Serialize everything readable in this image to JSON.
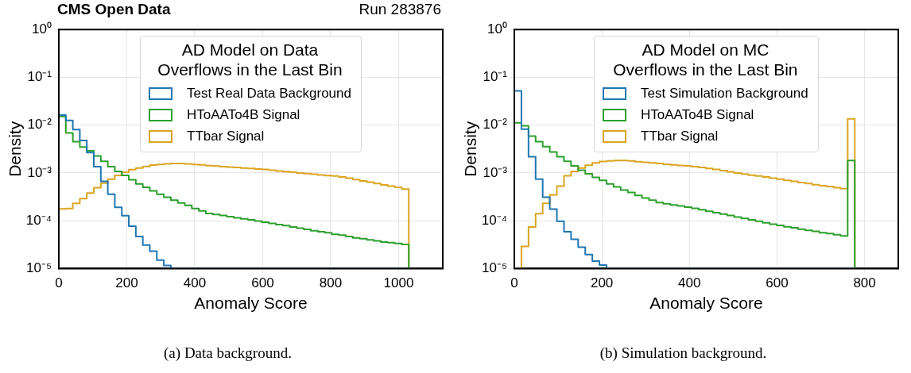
{
  "chart_data": [
    {
      "type": "histogram",
      "title": "CMS Open Data",
      "subtitle": "Run 283876",
      "xlabel": "Anomaly Score",
      "ylabel": "Density",
      "legend_title": "AD Model on Data\nOverflows in the Last Bin",
      "legend": "top",
      "grid": true,
      "log": true,
      "bins": [
        0,
        20.6,
        41.2,
        61.8,
        82.4,
        103,
        123.6,
        144.2,
        164.8,
        185.4,
        206,
        226.6,
        247.2,
        267.8,
        288.4,
        309,
        329.6,
        350.2,
        370.8,
        391.4,
        412,
        432.6,
        453.2,
        473.8,
        494.4,
        515,
        535.6,
        556.2,
        576.8,
        597.4,
        618,
        638.6,
        659.2,
        679.8,
        700.4,
        721,
        741.6,
        762.2,
        782.8,
        803.4,
        824,
        844.6,
        865.2,
        885.8,
        906.4,
        927,
        947.6,
        968.2,
        988.8,
        1009.4,
        1030
      ],
      "series": [
        {
          "name": "Test Real Data Background",
          "color": "#1f77b4",
          "values": [
            0.0163,
            0.0126,
            0.0081,
            0.0048,
            0.00266,
            0.00135,
            0.00067,
            0.00036,
            0.00019,
            0.000128,
            7.7e-05,
            4.7e-05,
            3.1e-05,
            2.3e-05,
            1.5e-05,
            1.16e-05,
            null,
            null,
            null,
            null,
            null,
            null,
            null,
            null,
            null,
            null,
            null,
            null,
            null,
            null,
            null,
            null,
            null,
            null,
            null,
            null,
            null,
            null,
            null,
            null,
            null,
            null,
            null,
            null,
            null,
            null,
            null,
            null,
            null,
            null
          ]
        },
        {
          "name": "HToAATo4B Signal",
          "color": "#2ca02c",
          "values": [
            0.0152,
            0.0069,
            0.0045,
            0.0035,
            0.0029,
            0.00226,
            0.00175,
            0.00135,
            0.00108,
            0.00089,
            0.00072,
            0.00059,
            0.0005,
            0.00042,
            0.00036,
            0.00031,
            0.00027,
            0.000236,
            0.00021,
            0.000181,
            0.00016,
            0.000142,
            0.000135,
            0.000129,
            0.000122,
            0.000115,
            0.00011,
            0.000105,
            9.9e-05,
            9.3e-05,
            8.8e-05,
            8.3e-05,
            7.9e-05,
            7.4e-05,
            7e-05,
            6.6e-05,
            6.2e-05,
            5.9e-05,
            5.6e-05,
            5.2e-05,
            5e-05,
            4.7e-05,
            4.4e-05,
            4.2e-05,
            4e-05,
            3.8e-05,
            3.6e-05,
            3.5e-05,
            3.35e-05,
            3.2e-05
          ]
        },
        {
          "name": "TTbar Signal",
          "color": "#daa520",
          "values": [
            0.000176,
            0.00018,
            0.00023,
            0.00029,
            0.00038,
            0.00049,
            0.00061,
            0.00074,
            0.00089,
            0.00104,
            0.00117,
            0.00127,
            0.00137,
            0.00146,
            0.00151,
            0.00155,
            0.00157,
            0.00157,
            0.00155,
            0.00151,
            0.00148,
            0.00142,
            0.00139,
            0.00136,
            0.00133,
            0.0013,
            0.00127,
            0.00124,
            0.00121,
            0.00118,
            0.00114,
            0.0011,
            0.00107,
            0.00104,
            0.001,
            0.00097,
            0.00094,
            0.00091,
            0.00088,
            0.00086,
            0.00082,
            0.00078,
            0.00073,
            0.00068,
            0.00064,
            0.0006,
            0.00056,
            0.00053,
            0.0005,
            0.00046
          ]
        }
      ],
      "xlim": [
        0,
        1130
      ],
      "xticks": [
        0,
        200,
        400,
        600,
        800,
        1000
      ],
      "ylim": [
        1e-05,
        1
      ],
      "yticks": [
        {
          "value": 1e-05,
          "label": "10⁻⁵"
        },
        {
          "value": 0.0001,
          "label": "10⁻⁴"
        },
        {
          "value": 0.001,
          "label": "10⁻³"
        },
        {
          "value": 0.01,
          "label": "10⁻²"
        },
        {
          "value": 0.1,
          "label": "10⁻¹"
        },
        {
          "value": 1,
          "label": "10⁰"
        }
      ],
      "annotations": [
        "(a) Data background."
      ]
    },
    {
      "type": "histogram",
      "xlabel": "Anomaly Score",
      "ylabel": "Density",
      "legend_title": "AD Model on MC\nOverflows in the Last Bin",
      "legend": "top",
      "grid": true,
      "log": true,
      "bins": [
        0,
        16.2,
        32.4,
        48.6,
        64.8,
        81,
        97.2,
        113.4,
        129.6,
        145.8,
        162,
        178.2,
        194.4,
        210.6,
        226.8,
        243,
        259.2,
        275.4,
        291.6,
        307.8,
        324,
        340.2,
        356.4,
        372.6,
        388.8,
        405,
        421.2,
        437.4,
        453.6,
        469.8,
        486,
        502.2,
        518.4,
        534.6,
        550.8,
        567,
        583.2,
        599.4,
        615.6,
        631.8,
        648,
        664.2,
        680.4,
        696.6,
        712.8,
        729,
        745.2,
        761.4,
        777.6
      ],
      "series": [
        {
          "name": "Test Simulation Background",
          "color": "#1f77b4",
          "values": [
            0.052,
            0.0082,
            0.00218,
            0.00074,
            0.00031,
            0.000175,
            9.8e-05,
            5.9e-05,
            4.1e-05,
            2.8e-05,
            1.97e-05,
            1.43e-05,
            1.18e-05,
            null,
            null,
            null,
            null,
            null,
            null,
            null,
            null,
            null,
            null,
            null,
            null,
            null,
            null,
            null,
            null,
            null,
            null,
            null,
            null,
            null,
            null,
            null,
            null,
            null,
            null,
            null,
            null,
            null,
            null,
            null,
            null,
            null,
            null,
            null
          ]
        },
        {
          "name": "HToAATo4B Signal",
          "color": "#2ca02c",
          "values": [
            0.0112,
            0.0097,
            0.0059,
            0.0045,
            0.00355,
            0.00275,
            0.00218,
            0.00175,
            0.00141,
            0.00114,
            0.00096,
            0.00081,
            0.0007,
            0.00059,
            0.00051,
            0.00044,
            0.00039,
            0.00034,
            0.0003,
            0.00027,
            0.00024,
            0.000226,
            0.000214,
            0.000204,
            0.000193,
            0.000182,
            0.00017,
            0.000158,
            0.000148,
            0.000138,
            0.000129,
            0.00012,
            0.000112,
            0.000105,
            9.8e-05,
            9.1e-05,
            8.5e-05,
            8e-05,
            7.5e-05,
            7.1e-05,
            6.7e-05,
            6.3e-05,
            6e-05,
            5.6e-05,
            5.4e-05,
            5.1e-05,
            4.8e-05,
            0.00182
          ]
        },
        {
          "name": "TTbar Signal",
          "color": "#daa520",
          "values": [
            null,
            2.9e-05,
            7.4e-05,
            0.00014,
            0.00023,
            0.00035,
            0.00053,
            0.00087,
            0.00108,
            0.00126,
            0.00145,
            0.00162,
            0.00173,
            0.00179,
            0.00182,
            0.00182,
            0.00178,
            0.00172,
            0.00167,
            0.00162,
            0.00157,
            0.00152,
            0.00147,
            0.00143,
            0.0014,
            0.00136,
            0.0013,
            0.00124,
            0.00118,
            0.00112,
            0.00106,
            0.001,
            0.00095,
            0.0009,
            0.00086,
            0.00082,
            0.00078,
            0.00074,
            0.0007,
            0.00067,
            0.00063,
            0.0006,
            0.00057,
            0.00054,
            0.00052,
            0.00049,
            0.00047,
            0.0136
          ]
        }
      ],
      "xlim": [
        0,
        877
      ],
      "xticks": [
        0,
        200,
        400,
        600,
        800
      ],
      "ylim": [
        1e-05,
        1
      ],
      "yticks": [
        {
          "value": 1e-05,
          "label": "10⁻⁵"
        },
        {
          "value": 0.0001,
          "label": "10⁻⁴"
        },
        {
          "value": 0.001,
          "label": "10⁻³"
        },
        {
          "value": 0.01,
          "label": "10⁻²"
        },
        {
          "value": 0.1,
          "label": "10⁻¹"
        },
        {
          "value": 1,
          "label": "10⁰"
        }
      ],
      "annotations": [
        "(b) Simulation background."
      ]
    }
  ]
}
